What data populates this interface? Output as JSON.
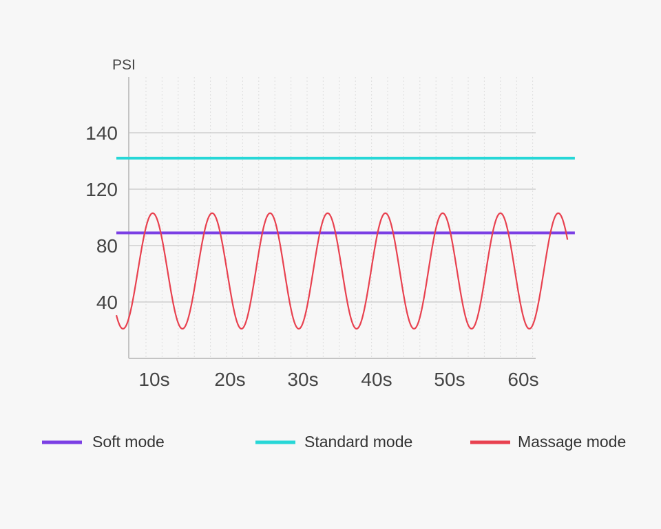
{
  "chart_data": {
    "type": "line",
    "title": "",
    "xlabel": "",
    "ylabel": "PSI",
    "x_ticks": [
      "10s",
      "20s",
      "30s",
      "40s",
      "50s",
      "60s"
    ],
    "x_tick_values": [
      10,
      20,
      30,
      40,
      50,
      60
    ],
    "y_ticks": [
      "40",
      "80",
      "120",
      "140"
    ],
    "y_tick_values": [
      40,
      80,
      120,
      140
    ],
    "xlim": [
      5,
      67
    ],
    "ylim": [
      0,
      165
    ],
    "grid": true,
    "legend_position": "bottom",
    "series": [
      {
        "name": "Soft mode",
        "color": "#7b3fe4",
        "x": [
          5,
          67
        ],
        "y": [
          89,
          89
        ]
      },
      {
        "name": "Standard mode",
        "color": "#27d7d7",
        "x": [
          5,
          67
        ],
        "y": [
          131,
          131
        ]
      },
      {
        "name": "Massage mode",
        "color": "#e8414f",
        "form": "sine",
        "min": 21,
        "max": 103,
        "period_s": 7.85,
        "first_peak_s": 9.8,
        "x_range": [
          5,
          66
        ]
      }
    ]
  }
}
